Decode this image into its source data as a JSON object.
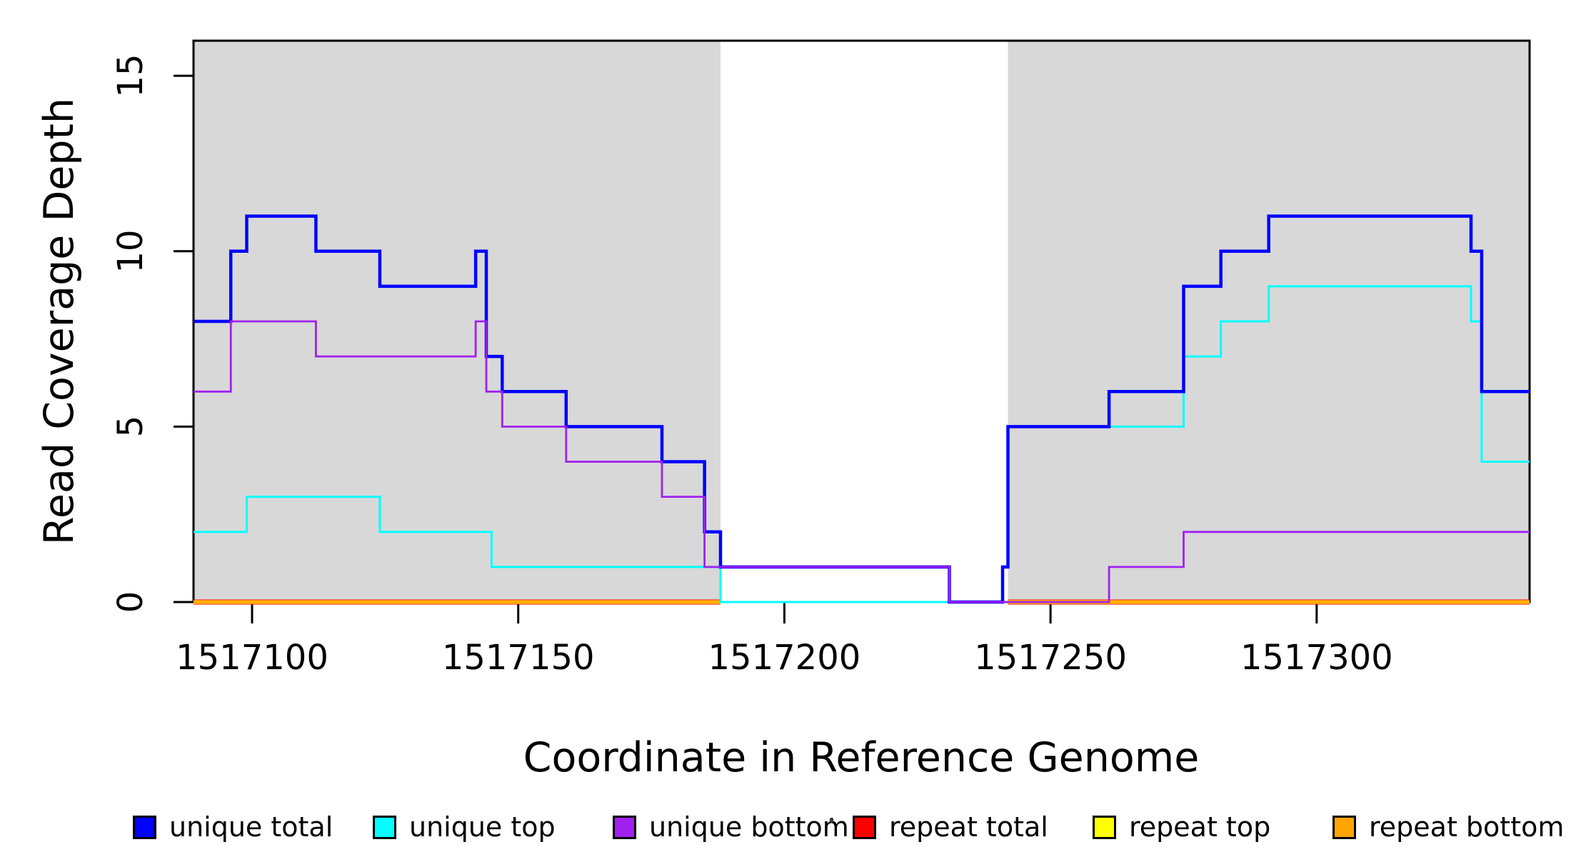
{
  "figure": {
    "xlabel": "Coordinate in Reference Genome",
    "ylabel": "Read Coverage Depth"
  },
  "legend": {
    "items": [
      {
        "label": "unique total",
        "color": "#0000FF"
      },
      {
        "label": "unique top",
        "color": "#00FFFF"
      },
      {
        "label": "unique bottom",
        "color": "#A020F0"
      },
      {
        "label": "repeat total",
        "color": "#FF0000"
      },
      {
        "label": "repeat top",
        "color": "#FFFF00"
      },
      {
        "label": "repeat bottom",
        "color": "#FFA500"
      }
    ]
  },
  "chart_data": {
    "type": "line",
    "subtype": "step",
    "title": "",
    "xlabel": "Coordinate in Reference Genome",
    "ylabel": "Read Coverage Depth",
    "xlim": [
      1517089,
      1517340
    ],
    "ylim": [
      0,
      16
    ],
    "x_ticks": [
      1517100,
      1517150,
      1517200,
      1517250,
      1517300
    ],
    "y_ticks": [
      0,
      5,
      10,
      15
    ],
    "grid": false,
    "legend_position": "bottom",
    "shade_color": "#D8D8D8",
    "shaded_regions": [
      [
        1517089,
        1517188
      ],
      [
        1517242,
        1517340
      ]
    ],
    "series": [
      {
        "name": "repeat total",
        "color": "#FF0000",
        "line_width": 7,
        "segments": [
          [
            [
              1517089,
              0
            ],
            [
              1517188,
              0
            ]
          ],
          [
            [
              1517242,
              0
            ],
            [
              1517340,
              0
            ]
          ]
        ]
      },
      {
        "name": "repeat top",
        "color": "#FFFF00",
        "line_width": 5,
        "segments": [
          [
            [
              1517089,
              0
            ],
            [
              1517188,
              0
            ]
          ],
          [
            [
              1517242,
              0
            ],
            [
              1517340,
              0
            ]
          ]
        ]
      },
      {
        "name": "repeat bottom",
        "color": "#FFA500",
        "line_width": 3.5,
        "segments": [
          [
            [
              1517089,
              0
            ],
            [
              1517188,
              0
            ]
          ],
          [
            [
              1517242,
              0
            ],
            [
              1517340,
              0
            ]
          ]
        ]
      },
      {
        "name": "unique top",
        "color": "#00FFFF",
        "line_width": 3,
        "segments": [
          [
            [
              1517089,
              2
            ],
            [
              1517099,
              3
            ],
            [
              1517124,
              2
            ],
            [
              1517145,
              1
            ],
            [
              1517188,
              0
            ],
            [
              1517241,
              1
            ],
            [
              1517242,
              5
            ],
            [
              1517275,
              7
            ],
            [
              1517282,
              8
            ],
            [
              1517291,
              9
            ],
            [
              1517329,
              8
            ],
            [
              1517331,
              4
            ],
            [
              1517340,
              4
            ]
          ]
        ]
      },
      {
        "name": "unique total",
        "color": "#0000FF",
        "line_width": 4.5,
        "segments": [
          [
            [
              1517089,
              8
            ],
            [
              1517096,
              10
            ],
            [
              1517099,
              11
            ],
            [
              1517112,
              10
            ],
            [
              1517124,
              9
            ],
            [
              1517142,
              10
            ],
            [
              1517144,
              7
            ],
            [
              1517147,
              6
            ],
            [
              1517159,
              5
            ],
            [
              1517177,
              4
            ],
            [
              1517185,
              2
            ],
            [
              1517188,
              1
            ],
            [
              1517231,
              0
            ],
            [
              1517241,
              1
            ],
            [
              1517242,
              5
            ],
            [
              1517261,
              6
            ],
            [
              1517275,
              9
            ],
            [
              1517282,
              10
            ],
            [
              1517291,
              11
            ],
            [
              1517329,
              10
            ],
            [
              1517331,
              6
            ],
            [
              1517340,
              6
            ]
          ]
        ]
      },
      {
        "name": "unique bottom",
        "color": "#A020F0",
        "line_width": 2.8,
        "segments": [
          [
            [
              1517089,
              6
            ],
            [
              1517096,
              8
            ],
            [
              1517112,
              7
            ],
            [
              1517142,
              8
            ],
            [
              1517144,
              6
            ],
            [
              1517147,
              5
            ],
            [
              1517159,
              4
            ],
            [
              1517177,
              3
            ],
            [
              1517185,
              1
            ],
            [
              1517231,
              0
            ],
            [
              1517261,
              1
            ],
            [
              1517275,
              2
            ],
            [
              1517340,
              2
            ]
          ]
        ]
      }
    ]
  }
}
